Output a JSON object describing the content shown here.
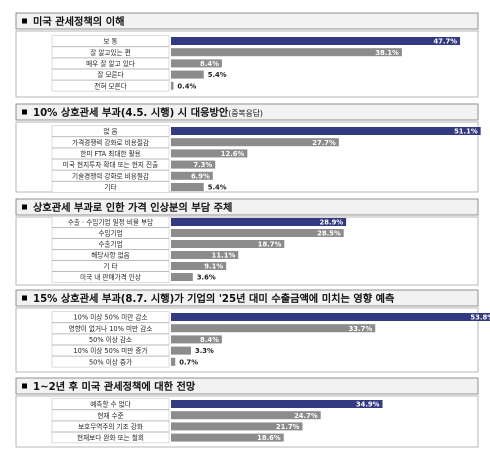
{
  "colors": {
    "highlight": "#343a82",
    "bar": "#8c8c8c",
    "header_bg": "#f2f2f2",
    "bullet": "#000000"
  },
  "bullet_icon": "square-bullet-icon",
  "chart_data": [
    {
      "type": "bar",
      "orientation": "horizontal",
      "title": "미국 관세정책의 이해",
      "categories": [
        "보 통",
        "잘 알고있는 편",
        "매우 잘 알고 있다",
        "잘 모른다",
        "전혀 모른다"
      ],
      "values": [
        47.7,
        38.1,
        8.4,
        5.4,
        0.4
      ],
      "value_labels": [
        "47.7%",
        "38.1%",
        "8.4%",
        "5.4%",
        "0.4%"
      ],
      "highlight_index": 0,
      "xlim": [
        0,
        60
      ]
    },
    {
      "type": "bar",
      "orientation": "horizontal",
      "title": "10% 상호관세 부과(4.5. 시행) 시 대응방안",
      "subtitle": "(중복응답)",
      "categories": [
        "없 음",
        "가격경쟁력 강화로 비용절감",
        "한미 FTA 최대한 활용",
        "미국 현지투자 확대 또는 현지 진출",
        "기술경쟁력 강화로 비용절감",
        "기타"
      ],
      "values": [
        51.1,
        27.7,
        12.6,
        7.3,
        6.9,
        5.4
      ],
      "value_labels": [
        "51.1%",
        "27.7%",
        "12.6%",
        "7.3%",
        "6.9%",
        "5.4%"
      ],
      "highlight_index": 0,
      "xlim": [
        0,
        60
      ]
    },
    {
      "type": "bar",
      "orientation": "horizontal",
      "title": "상호관세 부과로 인한 가격 인상분의 부담 주체",
      "categories": [
        "수출 · 수입기업 일정 비율 부담",
        "수입기업",
        "수출기업",
        "해당사항 없음",
        "기 타",
        "미국 내 판매가격 인상"
      ],
      "values": [
        28.9,
        28.5,
        18.7,
        11.1,
        9.1,
        3.6
      ],
      "value_labels": [
        "28.9%",
        "28.5%",
        "18.7%",
        "11.1%",
        "9.1%",
        "3.6%"
      ],
      "highlight_index": 0,
      "xlim": [
        0,
        60
      ]
    },
    {
      "type": "bar",
      "orientation": "horizontal",
      "title": "15% 상호관세 부과(8.7. 시행)가 기업의 '25년 대미 수출금액에 미치는 영향 예측",
      "categories": [
        "10% 이상 50% 미만 감소",
        "영향이 없거나 10% 미만 감소",
        "50% 이상 감소",
        "10% 이상 50% 미만 증가",
        "50% 이상 증가"
      ],
      "values": [
        53.8,
        33.7,
        8.4,
        3.3,
        0.7
      ],
      "value_labels": [
        "53.8%",
        "33.7%",
        "8.4%",
        "3.3%",
        "0.7%"
      ],
      "highlight_index": 0,
      "xlim": [
        0,
        60
      ]
    },
    {
      "type": "bar",
      "orientation": "horizontal",
      "title": "1~2년 후 미국 관세정책에 대한 전망",
      "categories": [
        "예측할 수 없다",
        "현재 수준",
        "보호무역주의 기조 강화",
        "현재보다 완화 또는 철회"
      ],
      "values": [
        34.9,
        24.7,
        21.7,
        18.6
      ],
      "value_labels": [
        "34.9%",
        "24.7%",
        "21.7%",
        "18.6%"
      ],
      "highlight_index": 0,
      "xlim": [
        0,
        60
      ]
    }
  ]
}
